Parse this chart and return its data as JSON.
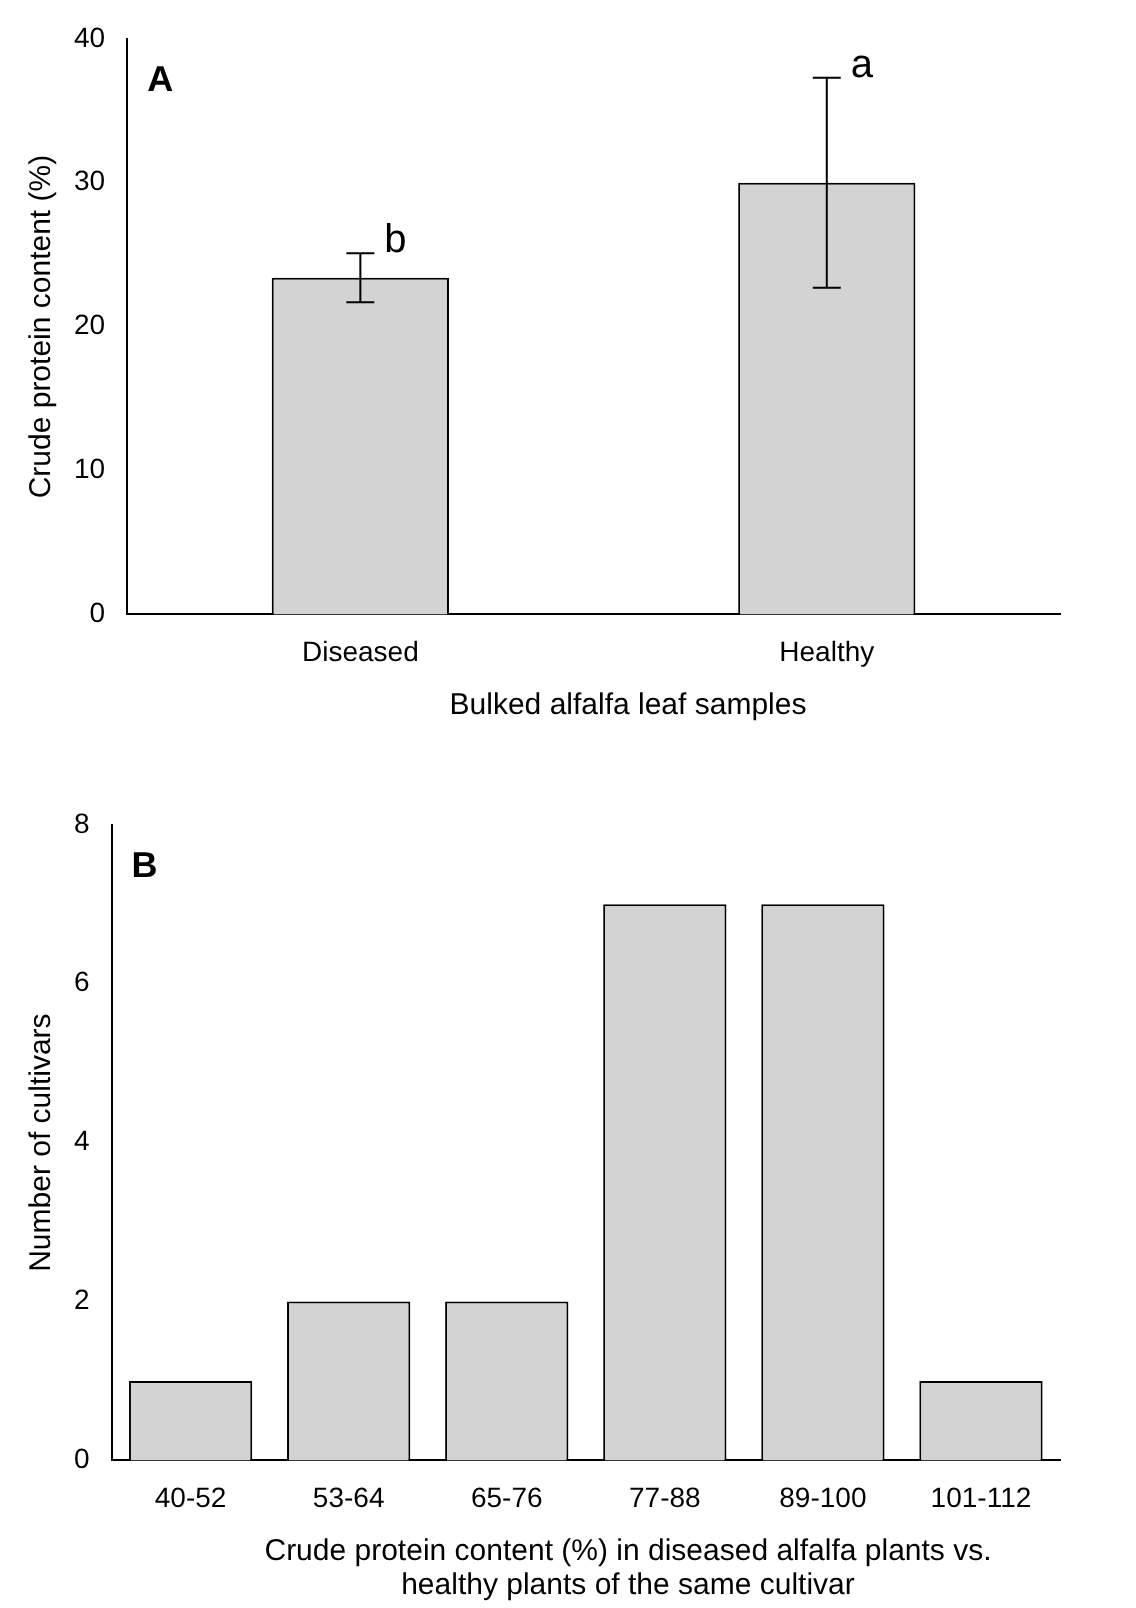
{
  "chart_data": [
    {
      "type": "bar",
      "categories": [
        "Diseased",
        "Healthy"
      ],
      "values": [
        23.4,
        30.0
      ],
      "errors": [
        1.7,
        7.3
      ],
      "color": "#d3d3d3",
      "ylim": [
        0,
        40
      ],
      "yticks": [
        0,
        10,
        20,
        30,
        40
      ],
      "ylabel": "Crude protein content (%)",
      "xlabel": "Bulked alfalfa leaf samples",
      "legend": false,
      "grid": false,
      "annotations": [
        "A",
        {
          "text": "b",
          "x": "Diseased",
          "y": 25.1
        },
        {
          "text": "a",
          "x": "Healthy",
          "y": 37.3
        }
      ]
    },
    {
      "type": "bar",
      "categories": [
        "40-52",
        "53-64",
        "65-76",
        "77-88",
        "89-100",
        "101-112"
      ],
      "values": [
        1,
        2,
        2,
        7,
        7,
        1
      ],
      "color": "#d3d3d3",
      "ylim": [
        0,
        8
      ],
      "yticks": [
        0,
        2,
        4,
        6,
        8
      ],
      "ylabel": "Number of cultivars",
      "xlabel": "Crude protein content (%) in diseased alfalfa plants vs.  healthy plants of the same cultivar",
      "legend": false,
      "grid": false,
      "annotations": [
        "B"
      ]
    }
  ]
}
